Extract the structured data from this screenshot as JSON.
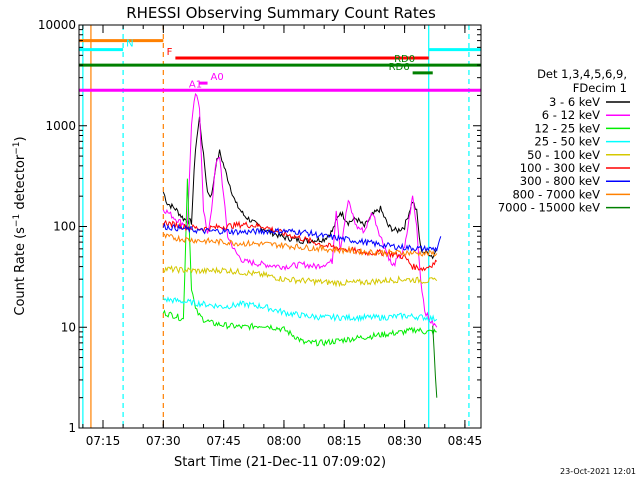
{
  "colors": {
    "3_6": "#000000",
    "6_12": "#ff00ff",
    "12_25": "#00ee00",
    "25_50": "#00ffff",
    "50_100": "#d4c800",
    "100_300": "#ff0000",
    "300_800": "#0000ff",
    "800_7000": "#ff8000",
    "7000_15000": "#008000",
    "cyan": "#00ffff"
  },
  "chart_data": {
    "type": "line",
    "title": "RHESSI Observing Summary Count Rates",
    "xlabel": "Start Time (21-Dec-11 07:09:02)",
    "ylabel": "Count Rate (s⁻¹ detector⁻¹)",
    "ylabel_parts": {
      "main": "Count Rate (s",
      "sup1": "−1",
      "mid": " detector",
      "sup2": "−1",
      "end": ")"
    },
    "yscale": "log",
    "xlim": [
      "07:09:02",
      "08:49:00"
    ],
    "ylim": [
      1,
      10000
    ],
    "x_ticks": [
      "07:15",
      "07:30",
      "07:45",
      "08:00",
      "08:15",
      "08:30",
      "08:45"
    ],
    "y_ticks": [
      "1",
      "10",
      "100",
      "1000",
      "10000"
    ],
    "legend_header": [
      "Det 1,3,4,5,6,9,",
      "FDecim 1"
    ],
    "legend_position": "right",
    "footer_date": "23-Oct-2021 12:01",
    "series": [
      {
        "name": "3 - 6 keV",
        "color_key": "3_6",
        "points": [
          [
            "07:30",
            220
          ],
          [
            "07:31",
            170
          ],
          [
            "07:33",
            150
          ],
          [
            "07:35",
            120
          ],
          [
            "07:37",
            110
          ],
          [
            "07:38",
            600
          ],
          [
            "07:39",
            1200
          ],
          [
            "07:40",
            500
          ],
          [
            "07:41",
            220
          ],
          [
            "07:42",
            200
          ],
          [
            "07:43",
            400
          ],
          [
            "07:44",
            550
          ],
          [
            "07:46",
            300
          ],
          [
            "07:48",
            170
          ],
          [
            "07:50",
            130
          ],
          [
            "07:53",
            105
          ],
          [
            "07:56",
            90
          ],
          [
            "08:00",
            78
          ],
          [
            "08:05",
            72
          ],
          [
            "08:10",
            75
          ],
          [
            "08:12",
            90
          ],
          [
            "08:14",
            140
          ],
          [
            "08:16",
            110
          ],
          [
            "08:18",
            120
          ],
          [
            "08:20",
            100
          ],
          [
            "08:22",
            130
          ],
          [
            "08:24",
            150
          ],
          [
            "08:26",
            100
          ],
          [
            "08:28",
            90
          ],
          [
            "08:30",
            100
          ],
          [
            "08:32",
            180
          ],
          [
            "08:33",
            140
          ],
          [
            "08:34",
            60
          ],
          [
            "08:35",
            55
          ],
          [
            "08:36",
            55
          ],
          [
            "08:37",
            50
          ],
          [
            "08:38",
            60
          ]
        ]
      },
      {
        "name": "6 - 12 keV",
        "color_key": "6_12",
        "points": [
          [
            "07:30",
            150
          ],
          [
            "07:33",
            120
          ],
          [
            "07:36",
            100
          ],
          [
            "07:37",
            1000
          ],
          [
            "07:38",
            2100
          ],
          [
            "07:39",
            1500
          ],
          [
            "07:40",
            150
          ],
          [
            "07:41",
            80
          ],
          [
            "07:42",
            150
          ],
          [
            "07:43",
            400
          ],
          [
            "07:44",
            500
          ],
          [
            "07:45",
            200
          ],
          [
            "07:46",
            80
          ],
          [
            "07:48",
            55
          ],
          [
            "07:50",
            45
          ],
          [
            "07:55",
            42
          ],
          [
            "08:00",
            40
          ],
          [
            "08:05",
            42
          ],
          [
            "08:08",
            40
          ],
          [
            "08:12",
            45
          ],
          [
            "08:13",
            150
          ],
          [
            "08:14",
            60
          ],
          [
            "08:16",
            180
          ],
          [
            "08:18",
            100
          ],
          [
            "08:20",
            90
          ],
          [
            "08:22",
            140
          ],
          [
            "08:24",
            80
          ],
          [
            "08:27",
            40
          ],
          [
            "08:30",
            60
          ],
          [
            "08:32",
            200
          ],
          [
            "08:33",
            100
          ],
          [
            "08:34",
            30
          ],
          [
            "08:35",
            15
          ],
          [
            "08:36",
            12
          ],
          [
            "08:38",
            10
          ]
        ]
      },
      {
        "name": "12 - 25 keV",
        "color_key": "12_25",
        "points": [
          [
            "07:30",
            14
          ],
          [
            "07:33",
            13
          ],
          [
            "07:35",
            12
          ],
          [
            "07:36",
            300
          ],
          [
            "07:37",
            25
          ],
          [
            "07:38",
            15
          ],
          [
            "07:39",
            13
          ],
          [
            "07:40",
            12
          ],
          [
            "07:42",
            11
          ],
          [
            "07:45",
            10.5
          ],
          [
            "07:50",
            10
          ],
          [
            "07:55",
            10.5
          ],
          [
            "08:00",
            9.5
          ],
          [
            "08:03",
            8
          ],
          [
            "08:05",
            7
          ],
          [
            "08:10",
            7
          ],
          [
            "08:15",
            7.5
          ],
          [
            "08:20",
            8
          ],
          [
            "08:25",
            8.5
          ],
          [
            "08:30",
            9
          ],
          [
            "08:33",
            9.5
          ],
          [
            "08:35",
            9
          ],
          [
            "08:38",
            9
          ]
        ]
      },
      {
        "name": "25 - 50 keV",
        "color_key": "25_50",
        "points": [
          [
            "07:30",
            19
          ],
          [
            "07:35",
            18
          ],
          [
            "07:40",
            17
          ],
          [
            "07:45",
            16
          ],
          [
            "07:50",
            17
          ],
          [
            "07:55",
            16
          ],
          [
            "08:00",
            14
          ],
          [
            "08:05",
            13
          ],
          [
            "08:10",
            12.5
          ],
          [
            "08:15",
            12.5
          ],
          [
            "08:20",
            12.5
          ],
          [
            "08:25",
            12.5
          ],
          [
            "08:30",
            13
          ],
          [
            "08:35",
            12.5
          ],
          [
            "08:38",
            12
          ]
        ]
      },
      {
        "name": "50 - 100 keV",
        "color_key": "50_100",
        "points": [
          [
            "07:30",
            38
          ],
          [
            "07:35",
            37
          ],
          [
            "07:40",
            36
          ],
          [
            "07:45",
            37
          ],
          [
            "07:50",
            35
          ],
          [
            "07:55",
            33
          ],
          [
            "08:00",
            30
          ],
          [
            "08:05",
            29
          ],
          [
            "08:10",
            28
          ],
          [
            "08:15",
            27.5
          ],
          [
            "08:20",
            28
          ],
          [
            "08:25",
            29
          ],
          [
            "08:30",
            30
          ],
          [
            "08:35",
            29
          ],
          [
            "08:38",
            29
          ]
        ]
      },
      {
        "name": "100 - 300 keV",
        "color_key": "100_300",
        "points": [
          [
            "07:30",
            110
          ],
          [
            "07:35",
            100
          ],
          [
            "07:40",
            95
          ],
          [
            "07:45",
            100
          ],
          [
            "07:50",
            105
          ],
          [
            "07:55",
            100
          ],
          [
            "08:00",
            85
          ],
          [
            "08:05",
            75
          ],
          [
            "08:10",
            65
          ],
          [
            "08:15",
            60
          ],
          [
            "08:20",
            55
          ],
          [
            "08:25",
            55
          ],
          [
            "08:30",
            50
          ],
          [
            "08:32",
            40
          ],
          [
            "08:35",
            38
          ],
          [
            "08:38",
            45
          ]
        ]
      },
      {
        "name": "300 - 800 keV",
        "color_key": "300_800",
        "points": [
          [
            "07:30",
            100
          ],
          [
            "07:35",
            95
          ],
          [
            "07:40",
            90
          ],
          [
            "07:45",
            90
          ],
          [
            "07:50",
            88
          ],
          [
            "07:55",
            90
          ],
          [
            "08:00",
            90
          ],
          [
            "08:05",
            88
          ],
          [
            "08:10",
            80
          ],
          [
            "08:15",
            75
          ],
          [
            "08:20",
            70
          ],
          [
            "08:25",
            65
          ],
          [
            "08:30",
            62
          ],
          [
            "08:35",
            60
          ],
          [
            "08:38",
            60
          ],
          [
            "08:39",
            80
          ]
        ]
      },
      {
        "name": "800 - 7000 keV",
        "color_key": "800_7000",
        "points": [
          [
            "07:30",
            80
          ],
          [
            "07:35",
            75
          ],
          [
            "07:40",
            72
          ],
          [
            "07:45",
            70
          ],
          [
            "07:50",
            68
          ],
          [
            "07:55",
            67
          ],
          [
            "08:00",
            65
          ],
          [
            "08:05",
            62
          ],
          [
            "08:10",
            60
          ],
          [
            "08:15",
            58
          ],
          [
            "08:20",
            56
          ],
          [
            "08:25",
            55
          ],
          [
            "08:30",
            55
          ],
          [
            "08:35",
            54
          ],
          [
            "08:38",
            54
          ]
        ]
      },
      {
        "name": "7000 - 15000 keV",
        "color_key": "7000_15000",
        "points": [
          [
            "08:37",
            10
          ],
          [
            "08:38",
            2
          ]
        ]
      }
    ],
    "flag_bars": [
      {
        "label": "S",
        "color_key": "800_7000",
        "x0": "07:09:02",
        "x1": "07:30",
        "y": 7000,
        "label_at": "start"
      },
      {
        "label": "N",
        "color_key": "cyan",
        "x0": "07:09:02",
        "x1": "07:20",
        "y": 5700,
        "label_at": "end"
      },
      {
        "label": "N",
        "color_key": "cyan",
        "x0": "08:36",
        "x1": "08:49:00",
        "y": 5700,
        "label_at": "none"
      },
      {
        "label": "F",
        "color_key": "100_300",
        "x0": "07:33",
        "x1": "08:36",
        "y": 4700,
        "label_at": "start"
      },
      {
        "label": "RD0",
        "color_key": "7000_15000",
        "x0": "07:09:02",
        "x1": "08:49:00",
        "y": 4000,
        "label_at": "mark:08:30"
      },
      {
        "label": "RD6",
        "color_key": "7000_15000",
        "x0": "08:32",
        "x1": "08:37",
        "y": 3350,
        "label_at": "start"
      },
      {
        "label": "A0",
        "color_key": "6_12",
        "x0": "07:39",
        "x1": "07:41",
        "y": 2650,
        "label_at": "end"
      },
      {
        "label": "A1",
        "color_key": "6_12",
        "x0": "07:09:02",
        "x1": "08:49:00",
        "y": 2250,
        "label_at": "mark:07:38"
      }
    ],
    "vertical_markers": [
      {
        "time": "07:10",
        "color_key": "cyan",
        "style": "solid"
      },
      {
        "time": "07:12",
        "color_key": "800_7000",
        "style": "solid"
      },
      {
        "time": "07:20",
        "color_key": "cyan",
        "style": "dashed"
      },
      {
        "time": "07:30",
        "color_key": "800_7000",
        "style": "dashed"
      },
      {
        "time": "08:36",
        "color_key": "cyan",
        "style": "solid"
      },
      {
        "time": "08:46",
        "color_key": "cyan",
        "style": "dashed"
      }
    ]
  }
}
